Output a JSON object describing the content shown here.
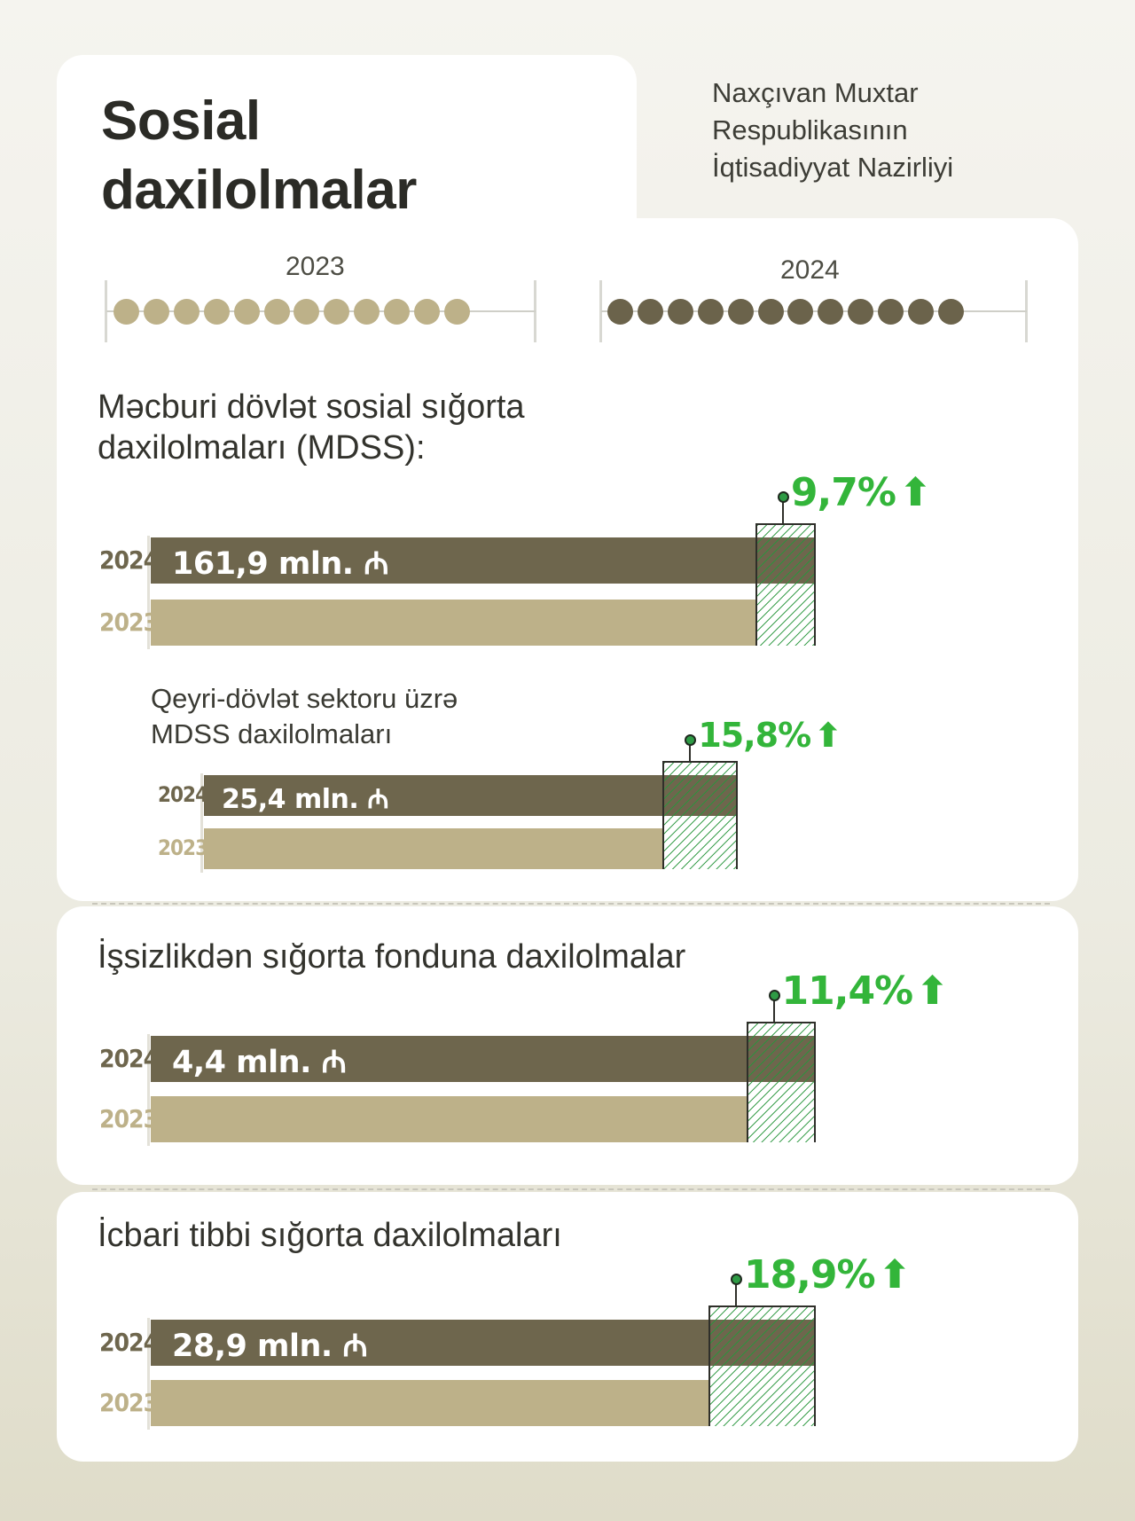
{
  "header": {
    "title_line1": "Sosial",
    "title_line2": "daxilolmalar",
    "org_line1": "Naxçıvan Muxtar",
    "org_line2": "Respublikasının",
    "org_line3": "İqtisadiyyat Nazirliyi"
  },
  "legend": {
    "year_2023": "2023",
    "year_2024": "2024",
    "color_2023": "#bdb189",
    "color_2024": "#6e664d",
    "dots_per_year": 12
  },
  "arrow_glyph": "⬆",
  "chart_data": [
    {
      "type": "bar",
      "title": "Məcburi dövlət sosial sığorta daxilolmaları (MDSS):",
      "title_line1": "Məcburi dövlət sosial sığorta",
      "title_line2": "daxilolmaları (MDSS):",
      "categories": [
        "2024",
        "2023"
      ],
      "series": [
        {
          "values": [
            161.9,
            147.6
          ]
        }
      ],
      "value_label_2024": "161,9 mln. ₼",
      "change_label": "9,7%",
      "change_pct": 9.7
    },
    {
      "type": "bar",
      "title": "Qeyri-dövlət sektoru üzrə MDSS daxilolmaları",
      "title_line1": "Qeyri-dövlət sektoru üzrə",
      "title_line2": "MDSS daxilolmaları",
      "categories": [
        "2024",
        "2023"
      ],
      "series": [
        {
          "values": [
            25.4,
            21.9
          ]
        }
      ],
      "value_label_2024": "25,4 mln. ₼",
      "change_label": "15,8%",
      "change_pct": 15.8
    },
    {
      "type": "bar",
      "title": "İşsizlikdən sığorta fonduna daxilolmalar",
      "categories": [
        "2024",
        "2023"
      ],
      "series": [
        {
          "values": [
            4.4,
            3.95
          ]
        }
      ],
      "value_label_2024": "4,4 mln. ₼",
      "change_label": "11,4%",
      "change_pct": 11.4
    },
    {
      "type": "bar",
      "title": "İcbari tibbi sığorta daxilolmaları",
      "categories": [
        "2024",
        "2023"
      ],
      "series": [
        {
          "values": [
            28.9,
            24.3
          ]
        }
      ],
      "value_label_2024": "28,9 mln. ₼",
      "change_label": "18,9%",
      "change_pct": 18.9
    }
  ]
}
